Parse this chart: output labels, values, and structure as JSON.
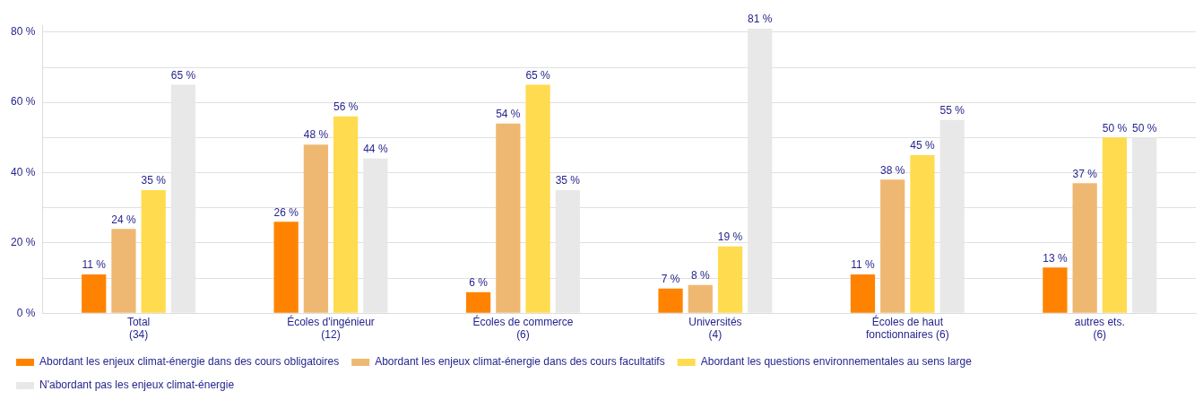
{
  "chart_data": {
    "type": "bar",
    "categories": [
      "Total\n(34)",
      "Écoles d'ingénieur\n(12)",
      "Écoles de commerce\n(6)",
      "Universités\n(4)",
      "Écoles de haut\nfonctionnaires (6)",
      "autres ets.\n(6)"
    ],
    "series": [
      {
        "name": "Abordant les enjeux climat-énergie dans des cours obligatoires",
        "color": "#ff8300",
        "values": [
          11,
          26,
          6,
          7,
          11,
          13
        ]
      },
      {
        "name": "Abordant les enjeux climat-énergie dans des cours facultatifs",
        "color": "#efb872",
        "values": [
          24,
          48,
          54,
          8,
          38,
          37
        ]
      },
      {
        "name": "Abordant les questions environnementales au sens large",
        "color": "#ffdb4f",
        "values": [
          35,
          56,
          65,
          19,
          45,
          50
        ]
      },
      {
        "name": "N'abordant pas les enjeux climat-énergie",
        "color": "#e8e8e8",
        "values": [
          65,
          44,
          35,
          81,
          55,
          50
        ]
      }
    ],
    "ylim": [
      0,
      82
    ],
    "yticks": [
      {
        "value": 0,
        "label": "0 %"
      },
      {
        "value": 10,
        "label": null
      },
      {
        "value": 20,
        "label": "20 %"
      },
      {
        "value": 30,
        "label": null
      },
      {
        "value": 40,
        "label": "40 %"
      },
      {
        "value": 50,
        "label": null
      },
      {
        "value": 60,
        "label": "60 %"
      },
      {
        "value": 70,
        "label": null
      },
      {
        "value": 80,
        "label": "80 %"
      }
    ],
    "value_labels": [
      [
        "11 %",
        "26 %",
        "6 %",
        "7 %",
        "11 %",
        "13 %"
      ],
      [
        "24 %",
        "48 %",
        "54 %",
        "8 %",
        "38 %",
        "37 %"
      ],
      [
        "35 %",
        "56 %",
        "65 %",
        "19 %",
        "45 %",
        "50 %"
      ],
      [
        "65 %",
        "44 %",
        "35 %",
        "81 %",
        "55 %",
        "50 %"
      ]
    ],
    "grid": "y",
    "legend": "bottom left"
  }
}
